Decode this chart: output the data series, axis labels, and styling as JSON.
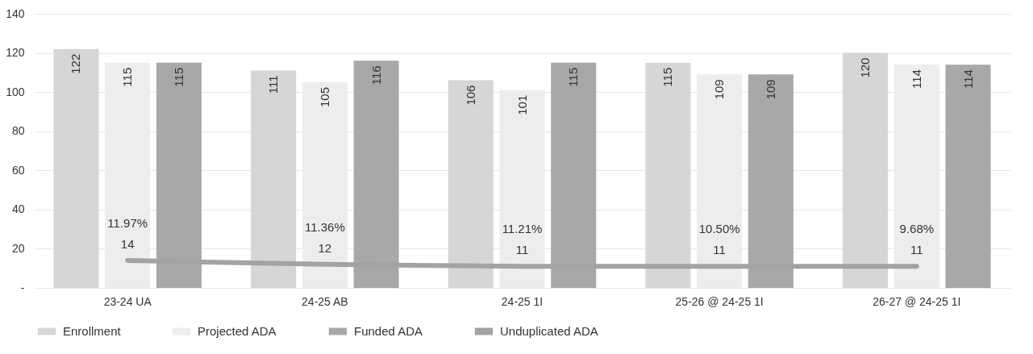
{
  "chart_data": {
    "type": "bar",
    "categories": [
      "23-24 UA",
      "24-25 AB",
      "24-25 1I",
      "25-26 @ 24-25 1I",
      "26-27 @ 24-25 1I"
    ],
    "series": [
      {
        "name": "Enrollment",
        "color": "#d6d6d6",
        "values": [
          122,
          111,
          106,
          115,
          120
        ]
      },
      {
        "name": "Projected ADA",
        "color": "#ededed",
        "values": [
          115,
          105,
          101,
          109,
          114
        ]
      },
      {
        "name": "Funded ADA",
        "color": "#a8a8a8",
        "values": [
          115,
          116,
          115,
          109,
          114
        ]
      },
      {
        "name": "Unduplicated ADA",
        "type": "line",
        "color": "#a3a3a3",
        "values": [
          14,
          12,
          11,
          11,
          11
        ]
      }
    ],
    "ylim": [
      0,
      140
    ],
    "yticks": [
      {
        "value": 0,
        "label": "-"
      },
      20,
      40,
      60,
      80,
      100,
      120,
      140
    ],
    "grid": "y",
    "legend": "bottom",
    "data_labels": true,
    "annotations": [
      {
        "text": "11.97%",
        "x": "23-24 UA",
        "y": 14
      },
      {
        "text": "11.36%",
        "x": "24-25 AB",
        "y": 12
      },
      {
        "text": "11.21%",
        "x": "24-25 1I",
        "y": 11
      },
      {
        "text": "10.50%",
        "x": "25-26 @ 24-25 1I",
        "y": 11
      },
      {
        "text": "9.68%",
        "x": "26-27 @ 24-25 1I",
        "y": 11
      }
    ]
  }
}
